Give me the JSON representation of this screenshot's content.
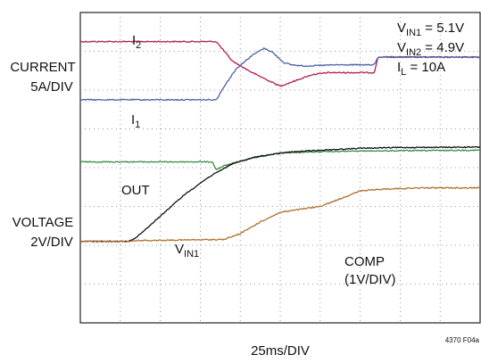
{
  "chart_data": {
    "type": "line",
    "title": "",
    "xlabel": "25ms/DIV",
    "x_unit_per_div": "25ms",
    "divisions": {
      "x": 10,
      "y": 8
    },
    "grid": true,
    "axis_labels": {
      "current": [
        "CURRENT",
        "5A/DIV"
      ],
      "voltage": [
        "VOLTAGE",
        "2V/DIV"
      ]
    },
    "conditions": [
      {
        "name": "V",
        "sub": "IN1",
        "value": " = 5.1V"
      },
      {
        "name": "V",
        "sub": "IN2",
        "value": " = 4.9V"
      },
      {
        "name": "I",
        "sub": "L",
        "value": " = 10A"
      }
    ],
    "figure_id": "4370 F04a",
    "series": [
      {
        "name": "I",
        "sub": "2",
        "color": "#b0204e",
        "noise": 0.6,
        "points": [
          [
            0,
            0.75
          ],
          [
            3.4,
            0.75
          ],
          [
            3.8,
            1.25
          ],
          [
            4.3,
            1.55
          ],
          [
            5.0,
            1.9
          ],
          [
            5.4,
            1.75
          ],
          [
            5.8,
            1.6
          ],
          [
            6.2,
            1.55
          ],
          [
            7.0,
            1.55
          ],
          [
            7.35,
            1.55
          ],
          [
            7.45,
            1.15
          ],
          [
            10,
            1.15
          ]
        ]
      },
      {
        "name": "I",
        "sub": "1",
        "color": "#4a62a8",
        "noise": 0.6,
        "points": [
          [
            0,
            2.25
          ],
          [
            3.4,
            2.25
          ],
          [
            3.6,
            1.9
          ],
          [
            3.9,
            1.45
          ],
          [
            4.3,
            1.1
          ],
          [
            4.6,
            0.92
          ],
          [
            4.8,
            1.02
          ],
          [
            5.1,
            1.3
          ],
          [
            5.3,
            1.35
          ],
          [
            5.6,
            1.38
          ],
          [
            6.4,
            1.35
          ],
          [
            7.35,
            1.35
          ],
          [
            7.45,
            1.15
          ],
          [
            10,
            1.15
          ]
        ]
      },
      {
        "name": "OUT",
        "sub": "",
        "color": "#3a8a4a",
        "noise": 0.5,
        "points": [
          [
            0,
            3.85
          ],
          [
            3.3,
            3.85
          ],
          [
            3.4,
            4.05
          ],
          [
            3.6,
            3.95
          ],
          [
            4.3,
            3.75
          ],
          [
            5.0,
            3.62
          ],
          [
            5.6,
            3.6
          ],
          [
            7.0,
            3.57
          ],
          [
            10,
            3.55
          ]
        ]
      },
      {
        "name": "V",
        "sub": "IN1",
        "color": "#111111",
        "noise": 0.5,
        "points": [
          [
            0,
            5.9
          ],
          [
            1.2,
            5.9
          ],
          [
            1.4,
            5.8
          ],
          [
            2.0,
            5.25
          ],
          [
            2.6,
            4.7
          ],
          [
            3.2,
            4.25
          ],
          [
            3.8,
            3.9
          ],
          [
            4.4,
            3.72
          ],
          [
            5.2,
            3.6
          ],
          [
            6.0,
            3.55
          ],
          [
            7.0,
            3.5
          ],
          [
            8.0,
            3.48
          ],
          [
            10,
            3.47
          ]
        ]
      },
      {
        "name": "COMP",
        "sub": "",
        "color": "#b07030",
        "noise": 0.6,
        "points": [
          [
            0,
            5.9
          ],
          [
            1.2,
            5.9
          ],
          [
            1.4,
            5.88
          ],
          [
            3.6,
            5.85
          ],
          [
            4.0,
            5.7
          ],
          [
            4.5,
            5.4
          ],
          [
            5.0,
            5.15
          ],
          [
            6.0,
            5.0
          ],
          [
            6.5,
            4.8
          ],
          [
            7.0,
            4.6
          ],
          [
            7.6,
            4.55
          ],
          [
            8.6,
            4.52
          ],
          [
            10,
            4.52
          ]
        ]
      }
    ],
    "trace_labels": [
      {
        "series": 0,
        "text": "I",
        "sub": "2"
      },
      {
        "series": 1,
        "text": "I",
        "sub": "1"
      },
      {
        "series": 2,
        "text": "OUT",
        "sub": ""
      },
      {
        "series": 3,
        "text": "V",
        "sub": "IN1"
      },
      {
        "series": 4,
        "text": "COMP",
        "sub": "",
        "line2": "(1V/DIV)"
      }
    ]
  }
}
